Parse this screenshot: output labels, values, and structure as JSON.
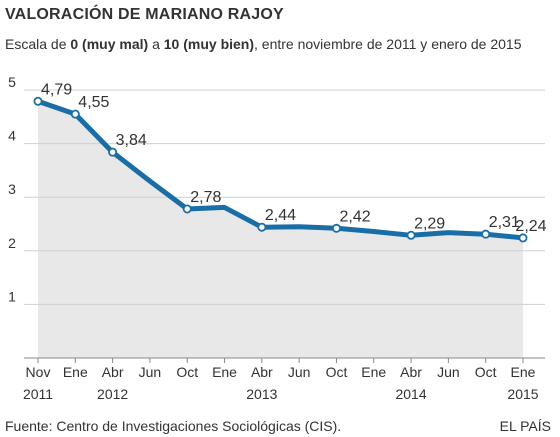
{
  "header": {
    "title": "VALORACIÓN DE MARIANO RAJOY",
    "subtitle_parts": [
      "Escala de ",
      "0 (muy mal)",
      " a ",
      "10 (muy bien)",
      ", entre noviembre de 2011 y enero de 2015"
    ]
  },
  "footer": {
    "source": "Fuente: Centro de Investigaciones Sociológicas (CIS).",
    "brand": "EL PAÍS"
  },
  "colors": {
    "line": "#1a6ea8",
    "area": "#e8e8e8",
    "grid": "#cfcfcf",
    "axis": "#888888",
    "text": "#333333"
  },
  "chart_data": {
    "type": "line",
    "title": "VALORACIÓN DE MARIANO RAJOY",
    "xlabel": "",
    "ylabel": "",
    "ylim": [
      0,
      5
    ],
    "yticks": [
      1,
      2,
      3,
      4,
      5
    ],
    "grid": true,
    "area_fill": true,
    "categories": [
      "Nov",
      "Ene",
      "Abr",
      "Jun",
      "Oct",
      "Ene",
      "Abr",
      "Jun",
      "Oct",
      "Ene",
      "Abr",
      "Jun",
      "Oct",
      "Ene"
    ],
    "year_labels": [
      {
        "index": 0,
        "label": "2011"
      },
      {
        "index": 2,
        "label": "2012"
      },
      {
        "index": 6,
        "label": "2013"
      },
      {
        "index": 10,
        "label": "2014"
      },
      {
        "index": 13,
        "label": "2015"
      }
    ],
    "series": [
      {
        "values": [
          4.79,
          4.55,
          3.84,
          3.3,
          2.78,
          2.81,
          2.44,
          2.45,
          2.42,
          2.36,
          2.29,
          2.34,
          2.31,
          2.24
        ],
        "labels": [
          "4,79",
          "4,55",
          "3,84",
          null,
          "2,78",
          null,
          "2,44",
          null,
          "2,42",
          null,
          "2,29",
          null,
          "2,31",
          "2,24"
        ]
      }
    ]
  }
}
